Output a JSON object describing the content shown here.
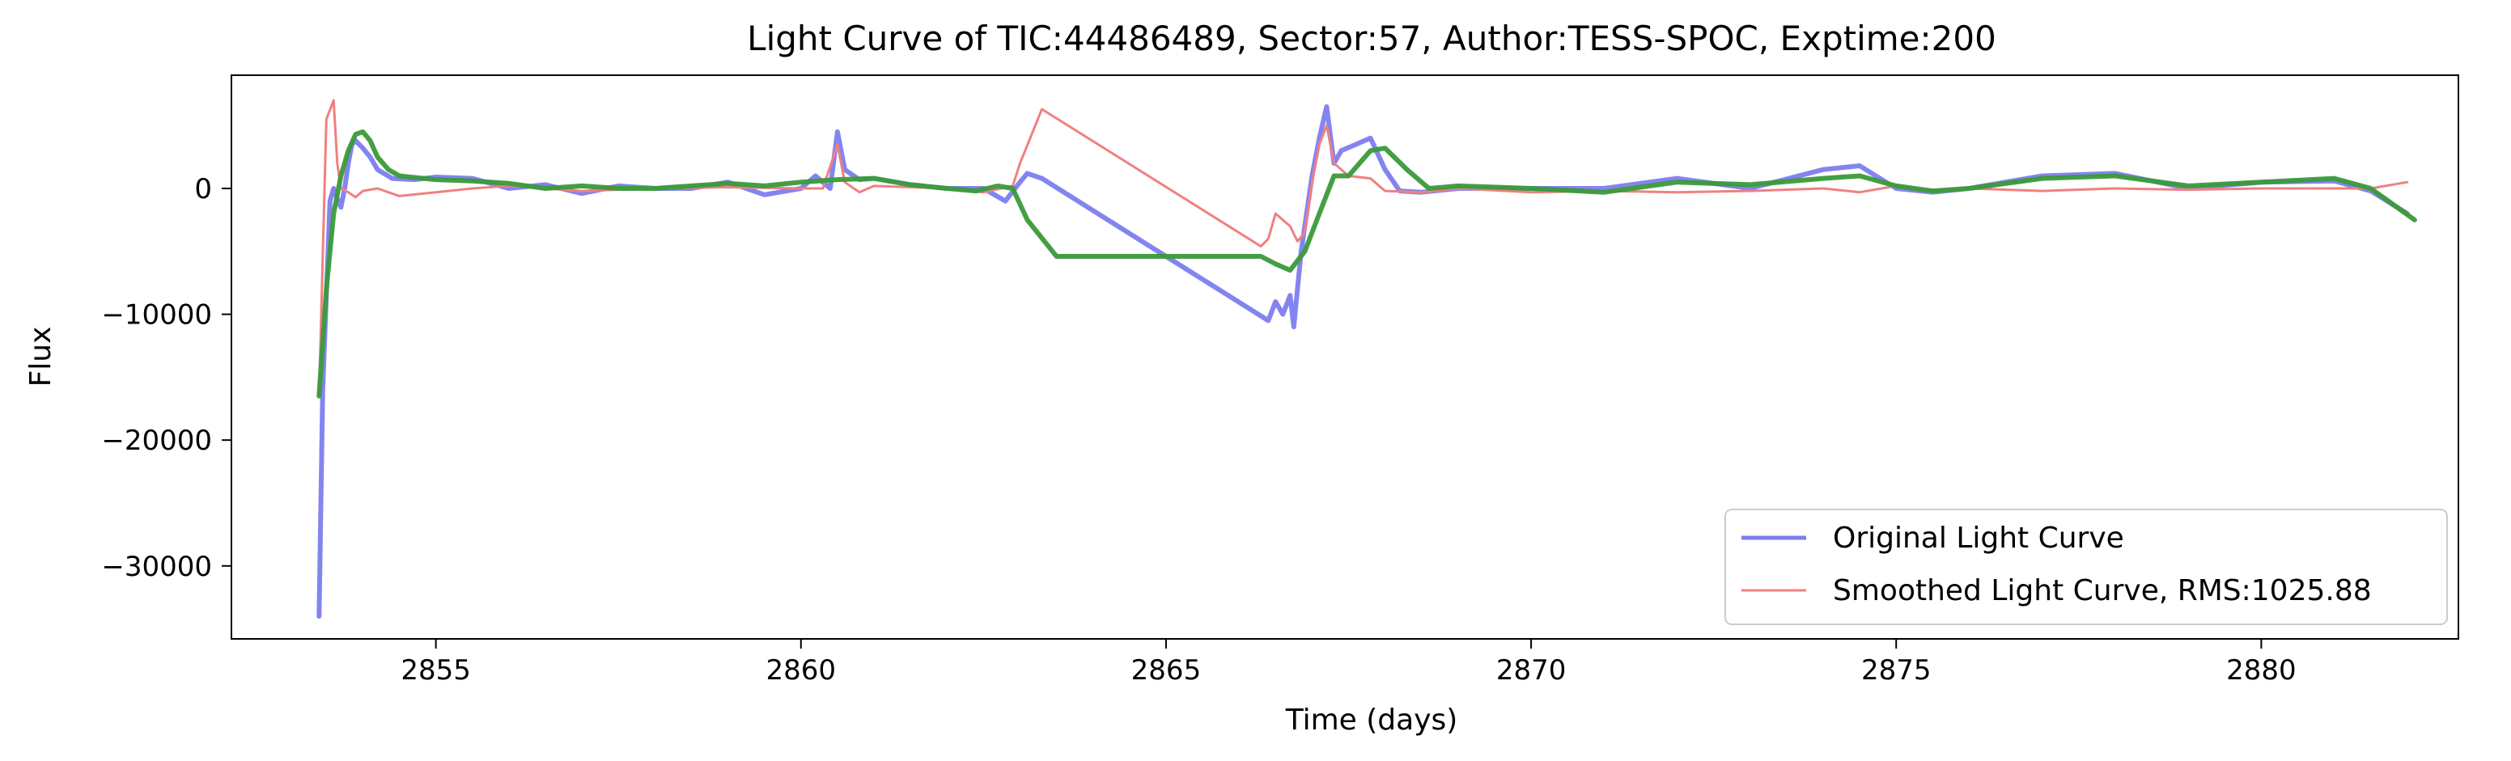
{
  "chart_data": {
    "type": "line",
    "title": "Light Curve of TIC:44486489, Sector:57, Author:TESS-SPOC, Exptime:200",
    "xlabel": "Time (days)",
    "ylabel": "Flux",
    "xlim": [
      2852.2,
      2882.7
    ],
    "ylim": [
      -35800,
      9000
    ],
    "xticks": [
      2855,
      2860,
      2865,
      2870,
      2875,
      2880
    ],
    "yticks": [
      -30000,
      -20000,
      -10000,
      0
    ],
    "ytick_labels": [
      "−30000",
      "−20000",
      "−10000",
      "0"
    ],
    "grid": false,
    "legend_position": "bottom-right",
    "series": [
      {
        "name": "Original Light Curve",
        "color": "#7777ee",
        "x": [
          2853.4,
          2853.45,
          2853.55,
          2853.6,
          2853.65,
          2853.7,
          2853.75,
          2853.8,
          2853.85,
          2853.9,
          2854.0,
          2854.1,
          2854.2,
          2854.4,
          2854.7,
          2855.0,
          2855.5,
          2856.0,
          2856.5,
          2857.0,
          2857.5,
          2858.0,
          2858.5,
          2859.0,
          2859.5,
          2860.0,
          2860.2,
          2860.4,
          2860.5,
          2860.6,
          2860.8,
          2861.0,
          2861.5,
          2862.0,
          2862.5,
          2862.8,
          2863.0,
          2863.1,
          2863.3,
          2866.4,
          2866.5,
          2866.6,
          2866.7,
          2866.75,
          2866.85,
          2867.0,
          2867.1,
          2867.2,
          2867.3,
          2867.4,
          2867.6,
          2867.8,
          2868.0,
          2868.2,
          2868.5,
          2869.0,
          2870.0,
          2871.0,
          2872.0,
          2873.0,
          2874.0,
          2874.5,
          2875.0,
          2875.5,
          2876.0,
          2877.0,
          2878.0,
          2879.0,
          2880.0,
          2881.0,
          2881.5,
          2882.0
        ],
        "y": [
          -34000,
          -16000,
          -1000,
          0,
          -800,
          -1500,
          0,
          2000,
          3500,
          3800,
          3200,
          2500,
          1500,
          800,
          700,
          900,
          800,
          0,
          300,
          -400,
          200,
          0,
          0,
          500,
          -500,
          0,
          1000,
          0,
          4500,
          1500,
          700,
          800,
          300,
          0,
          0,
          -1000,
          500,
          1200,
          800,
          -10500,
          -9000,
          -10000,
          -8500,
          -11000,
          -5000,
          1000,
          4000,
          6500,
          2000,
          3000,
          3500,
          4000,
          1500,
          -200,
          -300,
          0,
          0,
          0,
          800,
          0,
          1500,
          1800,
          0,
          -300,
          0,
          1000,
          1200,
          0,
          500,
          600,
          -200,
          -2000
        ]
      },
      {
        "name": "Smoothed Light Curve, RMS:1025.88",
        "color": "#f08080",
        "x": [
          2853.4,
          2853.5,
          2853.6,
          2853.65,
          2853.7,
          2853.8,
          2853.9,
          2854.0,
          2854.2,
          2854.5,
          2855.0,
          2855.5,
          2856.0,
          2857.0,
          2858.0,
          2859.0,
          2860.0,
          2860.3,
          2860.5,
          2860.6,
          2860.8,
          2861.0,
          2862.0,
          2862.5,
          2862.9,
          2863.0,
          2863.3,
          2866.3,
          2866.4,
          2866.5,
          2866.7,
          2866.8,
          2866.9,
          2867.0,
          2867.1,
          2867.2,
          2867.3,
          2867.5,
          2867.8,
          2868.0,
          2868.5,
          2869.0,
          2870.0,
          2871.0,
          2872.0,
          2873.0,
          2874.0,
          2874.5,
          2875.0,
          2875.5,
          2876.0,
          2877.0,
          2878.0,
          2879.0,
          2880.0,
          2881.0,
          2881.5,
          2882.0
        ],
        "y": [
          -16500,
          5500,
          7000,
          2000,
          0,
          -300,
          -700,
          -200,
          0,
          -600,
          -300,
          0,
          200,
          -200,
          0,
          100,
          0,
          0,
          3500,
          500,
          -300,
          200,
          0,
          -300,
          200,
          2000,
          6300,
          -4600,
          -4000,
          -2000,
          -3000,
          -4200,
          -3500,
          500,
          3500,
          5000,
          2000,
          1000,
          800,
          -200,
          -300,
          0,
          -300,
          -200,
          -300,
          -200,
          0,
          -300,
          200,
          -200,
          0,
          -200,
          0,
          -100,
          0,
          0,
          0,
          500
        ]
      },
      {
        "name": "",
        "color": "#3a9a3a",
        "x": [
          2853.4,
          2853.5,
          2853.6,
          2853.7,
          2853.8,
          2853.9,
          2854.0,
          2854.1,
          2854.2,
          2854.35,
          2854.5,
          2855.0,
          2855.5,
          2856.0,
          2856.5,
          2857.0,
          2857.5,
          2858.0,
          2858.5,
          2859.0,
          2859.5,
          2860.0,
          2860.5,
          2861.0,
          2861.5,
          2862.0,
          2862.4,
          2862.7,
          2862.9,
          2863.1,
          2863.5,
          2866.3,
          2866.5,
          2866.7,
          2866.9,
          2867.1,
          2867.3,
          2867.5,
          2867.8,
          2868.0,
          2868.3,
          2868.6,
          2869.0,
          2870.0,
          2871.0,
          2872.0,
          2873.0,
          2874.0,
          2874.5,
          2875.0,
          2875.5,
          2876.0,
          2877.0,
          2878.0,
          2879.0,
          2880.0,
          2881.0,
          2881.5,
          2882.1
        ],
        "y": [
          -16500,
          -8000,
          -2000,
          1000,
          3000,
          4300,
          4500,
          3800,
          2500,
          1500,
          1000,
          700,
          600,
          400,
          0,
          200,
          0,
          0,
          200,
          400,
          200,
          500,
          700,
          800,
          300,
          0,
          -200,
          200,
          0,
          -2500,
          -5400,
          -5400,
          -6000,
          -6500,
          -5000,
          -2000,
          1000,
          1000,
          3000,
          3200,
          1500,
          0,
          200,
          0,
          -300,
          500,
          300,
          800,
          1000,
          200,
          -200,
          0,
          800,
          1000,
          200,
          500,
          800,
          0,
          -2500
        ]
      }
    ]
  }
}
